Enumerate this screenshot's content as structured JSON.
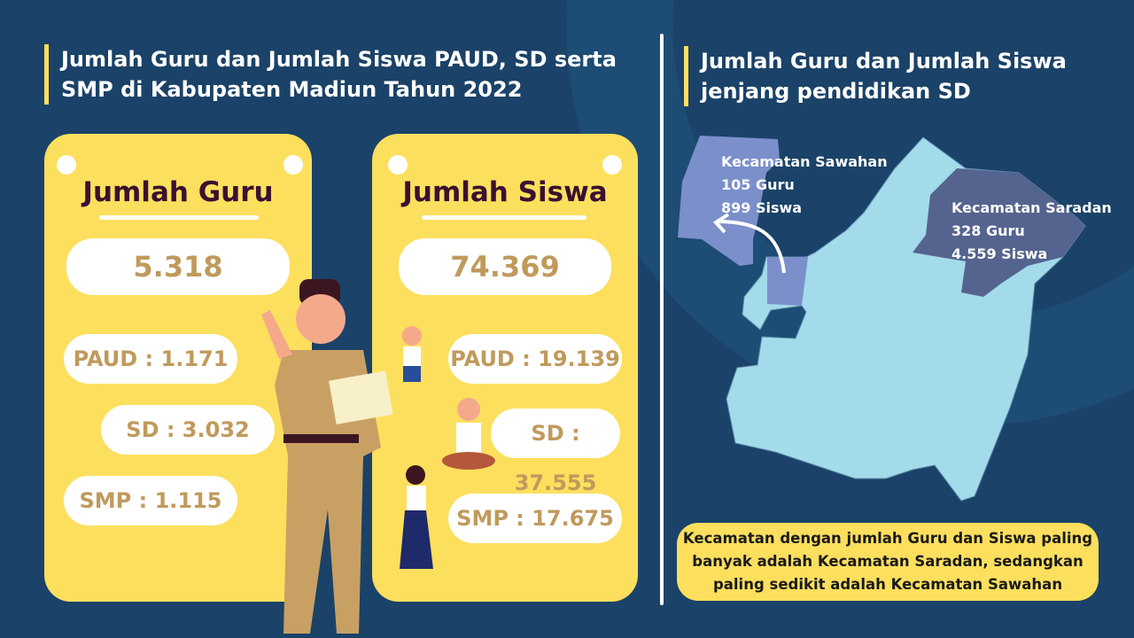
{
  "left": {
    "title": "Jumlah Guru dan Jumlah Siswa PAUD, SD serta SMP di Kabupaten Madiun Tahun 2022",
    "guru": {
      "heading": "Jumlah Guru",
      "total": "5.318",
      "paud": "PAUD : 1.171",
      "sd": "SD : 3.032",
      "smp": "SMP : 1.115"
    },
    "siswa": {
      "heading": "Jumlah Siswa",
      "total": "74.369",
      "paud": "PAUD : 19.139",
      "sd": "SD : 37.555",
      "smp": "SMP : 17.675"
    }
  },
  "right": {
    "title": "Jumlah Guru dan Jumlah Siswa jenjang pendidikan SD",
    "sawahan": {
      "name": "Kecamatan Sawahan",
      "guru": "105 Guru",
      "siswa": "899 Siswa"
    },
    "saradan": {
      "name": "Kecamatan Saradan",
      "guru": "328 Guru",
      "siswa": "4.559 Siswa"
    },
    "note": "Kecamatan dengan jumlah Guru dan Siswa paling banyak adalah Kecamatan Saradan, sedangkan paling sedikit adalah Kecamatan Sawahan"
  },
  "colors": {
    "background": "#1b4268",
    "card": "#fddf5e",
    "map": "#a3dbeb",
    "sawahan": "#7b8fcb",
    "saradan": "#55648f"
  }
}
